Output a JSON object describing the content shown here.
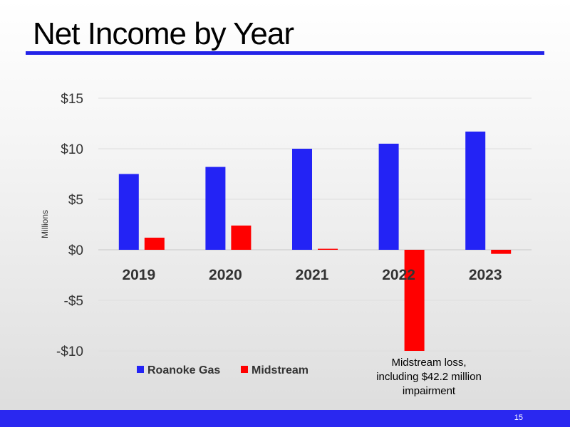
{
  "slide": {
    "title": "Net Income by Year",
    "page_number": "15",
    "accent_color": "#2323e8"
  },
  "chart_data": {
    "type": "bar",
    "title": "",
    "xlabel": "",
    "ylabel": "Millions",
    "categories": [
      "2019",
      "2020",
      "2021",
      "2022",
      "2023"
    ],
    "series": [
      {
        "name": "Roanoke Gas",
        "color": "#2323f5",
        "values": [
          7.5,
          8.2,
          10.0,
          10.5,
          11.7
        ]
      },
      {
        "name": "Midstream",
        "color": "#ff0000",
        "values": [
          1.2,
          2.4,
          0.1,
          -10.0,
          -0.4
        ]
      }
    ],
    "ylim": [
      -10,
      15
    ],
    "yticks": [
      15,
      10,
      5,
      0,
      -5,
      -10
    ],
    "ytick_labels": [
      "$15",
      "$10",
      "$5",
      "$0",
      "-$5",
      "-$10"
    ],
    "grid": true,
    "legend_position": "bottom-left",
    "annotation": "Midstream loss, including $42.2 million impairment"
  }
}
